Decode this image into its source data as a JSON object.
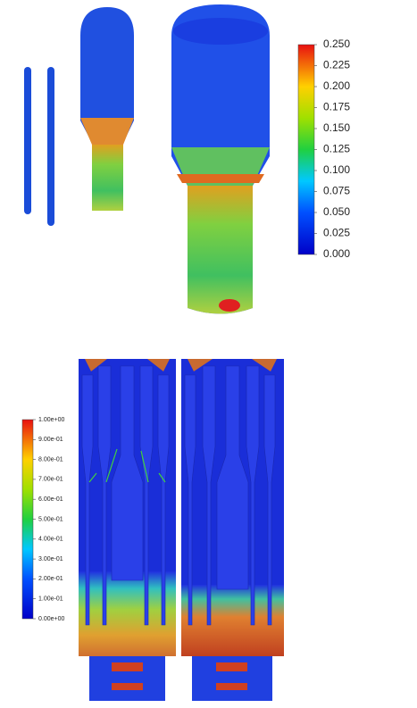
{
  "colorbar_top": {
    "ticks": [
      "0.250",
      "0.225",
      "0.200",
      "0.175",
      "0.150",
      "0.125",
      "0.100",
      "0.075",
      "0.050",
      "0.025",
      "0.000"
    ]
  },
  "colorbar_bottom": {
    "ticks": [
      "1.00e+00",
      "9.00e-01",
      "8.00e-01",
      "7.00e-01",
      "6.00e-01",
      "5.00e-01",
      "4.00e-01",
      "3.00e-01",
      "2.00e-01",
      "1.00e-01",
      "0.00e+00"
    ]
  }
}
